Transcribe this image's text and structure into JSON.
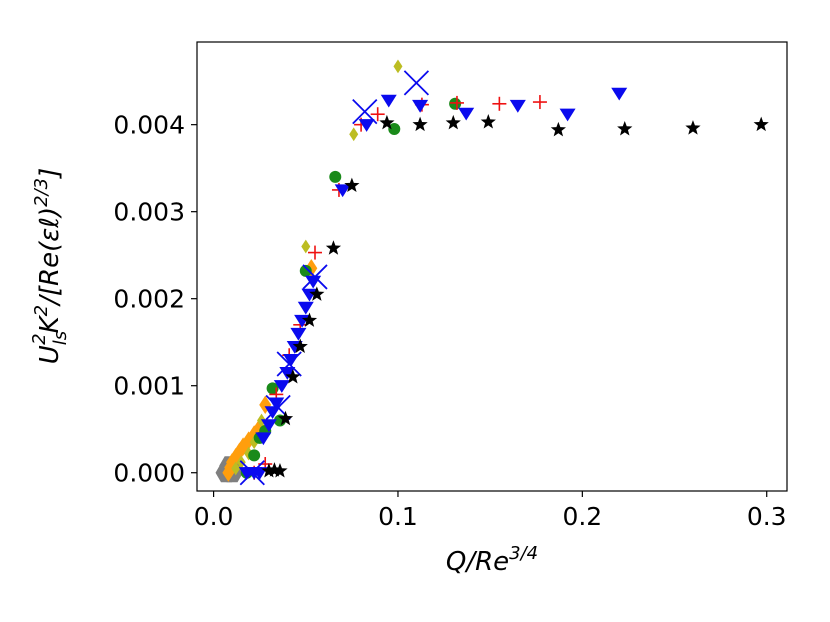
{
  "chart_data": {
    "type": "scatter",
    "xlabel": {
      "base": "Q/Re",
      "sup": "3/4"
    },
    "ylabel": {
      "p1": "U",
      "sub": "ls",
      "sup1": "2",
      "p2": "K",
      "sup2": "2",
      "p3": "/[Re(εℓ)",
      "sup3": "2/3",
      "p4": "]"
    },
    "xlim": [
      -0.009,
      0.311
    ],
    "ylim": [
      -0.00021,
      0.00495
    ],
    "xticks": [
      0.0,
      0.1,
      0.2,
      0.3
    ],
    "xtick_labels": [
      "0.0",
      "0.1",
      "0.2",
      "0.3"
    ],
    "yticks": [
      0.0,
      0.001,
      0.002,
      0.003,
      0.004
    ],
    "ytick_labels": [
      "0.000",
      "0.001",
      "0.002",
      "0.003",
      "0.004"
    ],
    "grid": false,
    "series": [
      {
        "marker": "hexagon",
        "color": "#7f7f7f",
        "size": 11,
        "x": [
          0.007,
          0.008,
          0.009,
          0.01
        ],
        "y": [
          0.0,
          3e-05,
          8e-05,
          0.0
        ]
      },
      {
        "marker": "diamond",
        "color": "#ff9e0d",
        "size": 8,
        "x": [
          0.008,
          0.009,
          0.01,
          0.012,
          0.014,
          0.016,
          0.019,
          0.022,
          0.025,
          0.028,
          0.053
        ],
        "y": [
          0.0,
          6e-05,
          0.00012,
          0.00018,
          0.00024,
          0.0003,
          0.00037,
          0.00044,
          0.00052,
          0.00078,
          0.00235
        ]
      },
      {
        "marker": "diamond",
        "color": "#bcbd22",
        "size": 6,
        "x": [
          0.012,
          0.015,
          0.019,
          0.022,
          0.026,
          0.05,
          0.076,
          0.1
        ],
        "y": [
          5e-05,
          0.00012,
          0.00022,
          0.00035,
          0.0006,
          0.0026,
          0.00389,
          0.00467
        ]
      },
      {
        "marker": "circle",
        "color": "#1a8a1a",
        "size": 6,
        "x": [
          0.018,
          0.022,
          0.025,
          0.028,
          0.032,
          0.036,
          0.05,
          0.066,
          0.098,
          0.131
        ],
        "y": [
          0.0,
          0.0002,
          0.0004,
          0.00048,
          0.00097,
          0.0006,
          0.00232,
          0.0034,
          0.00395,
          0.00424
        ]
      },
      {
        "marker": "plus",
        "color": "#ee1111",
        "size": 7,
        "x": [
          0.022,
          0.028,
          0.034,
          0.041,
          0.047,
          0.055,
          0.068,
          0.08,
          0.089,
          0.113,
          0.132,
          0.155,
          0.177
        ],
        "y": [
          0.0,
          0.0001,
          0.0009,
          0.00135,
          0.0017,
          0.00253,
          0.00325,
          0.004,
          0.00412,
          0.00423,
          0.00425,
          0.00424,
          0.00426
        ]
      },
      {
        "marker": "triangle-down",
        "color": "#0a0aee",
        "size": 8,
        "x": [
          0.018,
          0.022,
          0.025,
          0.027,
          0.03,
          0.032,
          0.034,
          0.037,
          0.04,
          0.042,
          0.044,
          0.046,
          0.048,
          0.05,
          0.052,
          0.054,
          0.07,
          0.083,
          0.095,
          0.112,
          0.137,
          0.165,
          0.192,
          0.22
        ],
        "y": [
          0.0,
          0.0,
          0.0,
          0.0004,
          0.00055,
          0.0007,
          0.0008,
          0.001,
          0.00115,
          0.0013,
          0.00145,
          0.0016,
          0.00175,
          0.0019,
          0.00205,
          0.0022,
          0.00325,
          0.004,
          0.00428,
          0.00422,
          0.00413,
          0.00422,
          0.00412,
          0.00436
        ]
      },
      {
        "marker": "x",
        "color": "#0a0aee",
        "size": 12,
        "x": [
          0.021,
          0.035,
          0.041,
          0.055,
          0.082,
          0.11
        ],
        "y": [
          0.0,
          0.00075,
          0.00125,
          0.00225,
          0.00415,
          0.00448
        ]
      },
      {
        "marker": "star",
        "color": "#000000",
        "size": 8,
        "x": [
          0.03,
          0.033,
          0.036,
          0.039,
          0.043,
          0.047,
          0.052,
          0.056,
          0.065,
          0.075,
          0.094,
          0.112,
          0.13,
          0.149,
          0.187,
          0.223,
          0.26,
          0.297
        ],
        "y": [
          2e-05,
          3e-05,
          2e-05,
          0.00062,
          0.0011,
          0.00145,
          0.00175,
          0.00205,
          0.00258,
          0.0033,
          0.00402,
          0.004,
          0.00402,
          0.00403,
          0.00394,
          0.00395,
          0.00396,
          0.004
        ]
      }
    ]
  }
}
